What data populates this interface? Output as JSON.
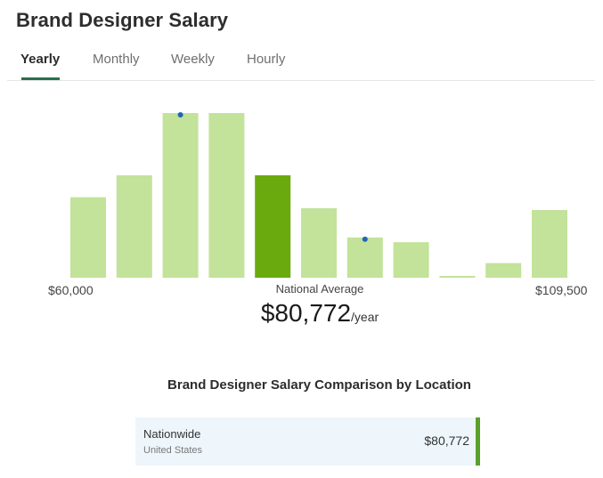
{
  "title": "Brand Designer Salary",
  "tabs": [
    {
      "label": "Yearly",
      "active": true
    },
    {
      "label": "Monthly",
      "active": false
    },
    {
      "label": "Weekly",
      "active": false
    },
    {
      "label": "Hourly",
      "active": false
    }
  ],
  "chart_data": {
    "type": "bar",
    "x_min_label": "$60,000",
    "x_max_label": "$109,500",
    "values": [
      22,
      28,
      45,
      45,
      28,
      19,
      11,
      9.7,
      0.5,
      4,
      18.5
    ],
    "highlight_index": 4,
    "marker_indices": [
      2,
      6
    ],
    "colors": {
      "bar": "#c3e29a",
      "highlight": "#6aaa0e",
      "marker": "#1f67b1"
    }
  },
  "national_average": {
    "label": "National Average",
    "value": "$80,772",
    "unit": "/year"
  },
  "comparison": {
    "title": "Brand Designer Salary Comparison by Location",
    "items": [
      {
        "name": "Nationwide",
        "sub": "United States",
        "value": "$80,772"
      }
    ]
  }
}
